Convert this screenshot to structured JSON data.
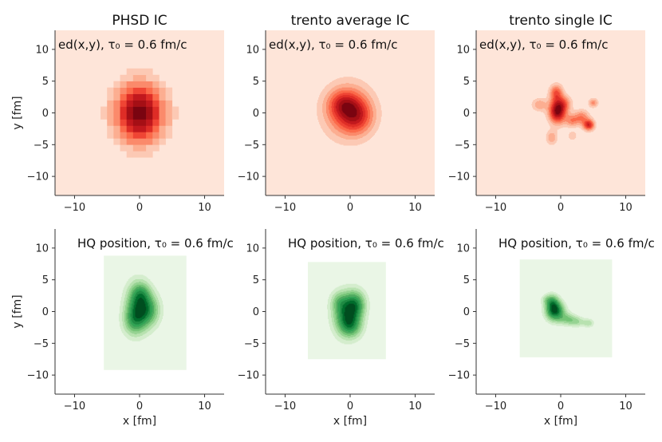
{
  "colors": {
    "reds": [
      "#fee5d9",
      "#fcc9b4",
      "#fcae91",
      "#fb8a6b",
      "#fb6a4a",
      "#ef4534",
      "#de2d26",
      "#c1181d",
      "#a50f15",
      "#7a0410"
    ],
    "greens": [
      "#eaf6e6",
      "#d4edcd",
      "#b8e2b0",
      "#96d392",
      "#74c476",
      "#4faa60",
      "#31a354",
      "#1f8a43",
      "#006d2c",
      "#004d1f"
    ],
    "red_background": "#fee5d9",
    "green_background": "#eaf6e6"
  },
  "chart_data": [
    {
      "id": "phsd-ed",
      "type": "heatmap",
      "title": "PHSD IC",
      "annotation": "ed(x,y), τ₀ = 0.6 fm/c",
      "colormap": "reds",
      "style": "pixelated",
      "grid_step": 1,
      "xlabel": "",
      "ylabel": "y [fm]",
      "xlim": [
        -13,
        13
      ],
      "ylim": [
        -13,
        13
      ],
      "xticks": [
        -10,
        0,
        10
      ],
      "yticks": [
        -10,
        -5,
        0,
        5,
        10
      ],
      "xtick_labels": [
        "−10",
        "0",
        "10"
      ],
      "ytick_labels": [
        "−10",
        "−5",
        "0",
        "5",
        "10"
      ],
      "background_extent": [
        -13,
        13,
        -13,
        13
      ],
      "blobs": [
        {
          "x": 0,
          "y": 0,
          "sx": 2.6,
          "sy": 3.2,
          "a": 1.0
        }
      ],
      "contour_levels": 9,
      "threshold": 0.1
    },
    {
      "id": "trento-avg-ed",
      "type": "heatmap",
      "title": "trento average IC",
      "annotation": "ed(x,y), τ₀ = 0.6 fm/c",
      "colormap": "reds",
      "style": "contour",
      "xlabel": "",
      "ylabel": "",
      "xlim": [
        -13,
        13
      ],
      "ylim": [
        -13,
        13
      ],
      "xticks": [
        -10,
        0,
        10
      ],
      "yticks": [
        -10,
        -5,
        0,
        5,
        10
      ],
      "xtick_labels": [
        "−10",
        "0",
        "10"
      ],
      "ytick_labels": [
        "−10",
        "−5",
        "0",
        "5",
        "10"
      ],
      "background_extent": [
        -13,
        13,
        -13,
        13
      ],
      "blobs": [
        {
          "x": -0.3,
          "y": 0.3,
          "sx": 2.4,
          "sy": 2.7,
          "a": 1.0
        },
        {
          "x": 1.2,
          "y": -0.6,
          "sx": 1.6,
          "sy": 1.8,
          "a": 0.5
        },
        {
          "x": -1.2,
          "y": 1.4,
          "sx": 1.5,
          "sy": 1.4,
          "a": 0.45
        }
      ],
      "contour_levels": 9,
      "threshold": 0.09
    },
    {
      "id": "trento-single-ed",
      "type": "heatmap",
      "title": "trento single IC",
      "annotation": "ed(x,y), τ₀ = 0.6 fm/c",
      "colormap": "reds",
      "style": "contour",
      "xlabel": "",
      "ylabel": "",
      "xlim": [
        -13,
        13
      ],
      "ylim": [
        -13,
        13
      ],
      "xticks": [
        -10,
        0,
        10
      ],
      "yticks": [
        -10,
        -5,
        0,
        5,
        10
      ],
      "xtick_labels": [
        "−10",
        "0",
        "10"
      ],
      "ytick_labels": [
        "−10",
        "−5",
        "0",
        "5",
        "10"
      ],
      "background_extent": [
        -13,
        13,
        -13,
        13
      ],
      "blobs": [
        {
          "x": -0.5,
          "y": 0.3,
          "sx": 0.9,
          "sy": 1.3,
          "a": 1.0
        },
        {
          "x": -0.7,
          "y": 3.2,
          "sx": 0.7,
          "sy": 0.9,
          "a": 0.5
        },
        {
          "x": -3.3,
          "y": 1.3,
          "sx": 0.8,
          "sy": 0.7,
          "a": 0.3
        },
        {
          "x": 1.7,
          "y": -1.2,
          "sx": 0.7,
          "sy": 0.7,
          "a": 0.35
        },
        {
          "x": 3.2,
          "y": -0.7,
          "sx": 0.8,
          "sy": 0.8,
          "a": 0.4
        },
        {
          "x": 4.3,
          "y": -1.9,
          "sx": 0.6,
          "sy": 0.6,
          "a": 0.7
        },
        {
          "x": 5.0,
          "y": 1.6,
          "sx": 0.5,
          "sy": 0.5,
          "a": 0.35
        },
        {
          "x": -1.4,
          "y": -3.9,
          "sx": 0.6,
          "sy": 0.8,
          "a": 0.3
        },
        {
          "x": 1.8,
          "y": -3.6,
          "sx": 0.5,
          "sy": 0.5,
          "a": 0.2
        },
        {
          "x": 0.6,
          "y": 1.5,
          "sx": 0.8,
          "sy": 0.8,
          "a": 0.3
        }
      ],
      "contour_levels": 9,
      "threshold": 0.1
    },
    {
      "id": "phsd-hq",
      "type": "heatmap",
      "title": "",
      "annotation": "HQ position, τ₀ = 0.6 fm/c",
      "colormap": "greens",
      "style": "contour",
      "xlabel": "x [fm]",
      "ylabel": "y [fm]",
      "xlim": [
        -13,
        13
      ],
      "ylim": [
        -13,
        13
      ],
      "xticks": [
        -10,
        0,
        10
      ],
      "yticks": [
        -10,
        -5,
        0,
        5,
        10
      ],
      "xtick_labels": [
        "−10",
        "0",
        "10"
      ],
      "ytick_labels": [
        "−10",
        "−5",
        "0",
        "5",
        "10"
      ],
      "background_extent": [
        -5.5,
        7.2,
        -9.2,
        8.8
      ],
      "blobs": [
        {
          "x": -0.3,
          "y": 1.0,
          "sx": 1.3,
          "sy": 2.4,
          "a": 1.0
        },
        {
          "x": 1.5,
          "y": 0.2,
          "sx": 1.2,
          "sy": 1.8,
          "a": 0.7
        },
        {
          "x": -0.9,
          "y": -1.6,
          "sx": 1.2,
          "sy": 1.6,
          "a": 0.55
        },
        {
          "x": 0.3,
          "y": 3.0,
          "sx": 1.0,
          "sy": 1.2,
          "a": 0.35
        }
      ],
      "contour_levels": 9,
      "threshold": 0.1
    },
    {
      "id": "trento-avg-hq",
      "type": "heatmap",
      "title": "",
      "annotation": "HQ position, τ₀ = 0.6 fm/c",
      "colormap": "greens",
      "style": "contour",
      "xlabel": "x [fm]",
      "ylabel": "",
      "xlim": [
        -13,
        13
      ],
      "ylim": [
        -13,
        13
      ],
      "xticks": [
        -10,
        0,
        10
      ],
      "yticks": [
        -10,
        -5,
        0,
        5,
        10
      ],
      "xtick_labels": [
        "−10",
        "0",
        "10"
      ],
      "ytick_labels": [
        "−10",
        "−5",
        "0",
        "5",
        "10"
      ],
      "background_extent": [
        -6.5,
        5.5,
        -7.5,
        7.8
      ],
      "blobs": [
        {
          "x": -0.6,
          "y": -0.4,
          "sx": 1.4,
          "sy": 2.2,
          "a": 1.0
        },
        {
          "x": 0.9,
          "y": 1.2,
          "sx": 1.1,
          "sy": 1.5,
          "a": 0.7
        },
        {
          "x": 0.2,
          "y": -2.3,
          "sx": 1.2,
          "sy": 1.3,
          "a": 0.5
        },
        {
          "x": -1.8,
          "y": 1.6,
          "sx": 0.9,
          "sy": 1.1,
          "a": 0.3
        }
      ],
      "contour_levels": 9,
      "threshold": 0.1
    },
    {
      "id": "trento-single-hq",
      "type": "heatmap",
      "title": "",
      "annotation": "HQ position, τ₀ = 0.6 fm/c",
      "colormap": "greens",
      "style": "contour",
      "xlabel": "x [fm]",
      "ylabel": "",
      "xlim": [
        -13,
        13
      ],
      "ylim": [
        -13,
        13
      ],
      "xticks": [
        -10,
        0,
        10
      ],
      "yticks": [
        -10,
        -5,
        0,
        5,
        10
      ],
      "xtick_labels": [
        "−10",
        "0",
        "10"
      ],
      "ytick_labels": [
        "−10",
        "−5",
        "0",
        "5",
        "10"
      ],
      "background_extent": [
        -6.3,
        7.9,
        -7.2,
        8.2
      ],
      "blobs": [
        {
          "x": -0.9,
          "y": 0.1,
          "sx": 1.0,
          "sy": 1.1,
          "a": 1.0
        },
        {
          "x": -1.3,
          "y": 1.6,
          "sx": 0.7,
          "sy": 0.9,
          "a": 0.45
        },
        {
          "x": 1.1,
          "y": -1.2,
          "sx": 0.9,
          "sy": 0.7,
          "a": 0.4
        },
        {
          "x": 2.6,
          "y": -1.6,
          "sx": 0.8,
          "sy": 0.6,
          "a": 0.3
        },
        {
          "x": 4.3,
          "y": -1.8,
          "sx": 0.6,
          "sy": 0.5,
          "a": 0.3
        },
        {
          "x": -2.3,
          "y": 1.9,
          "sx": 0.6,
          "sy": 0.6,
          "a": 0.2
        }
      ],
      "contour_levels": 9,
      "threshold": 0.12
    }
  ]
}
